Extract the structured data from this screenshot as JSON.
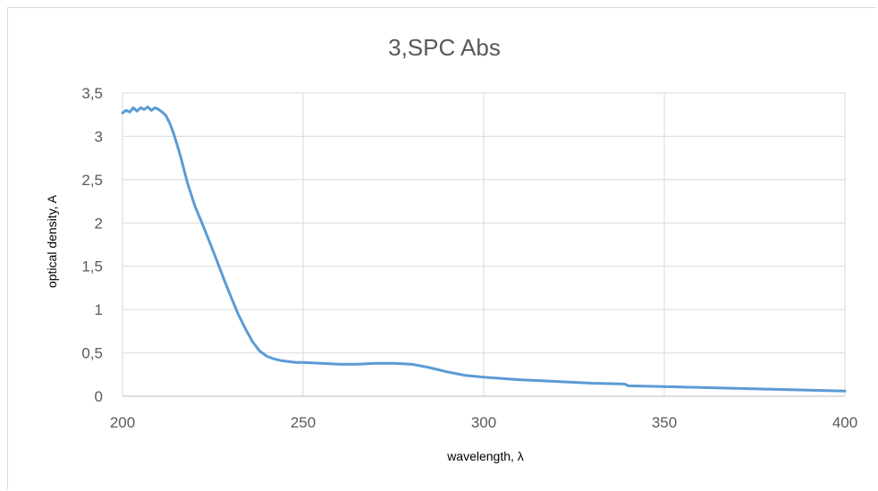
{
  "chart_data": {
    "type": "line",
    "title": "3,SPC Abs",
    "xlabel": "wavelength, λ",
    "ylabel": "optical density, A",
    "xlim": [
      200,
      400
    ],
    "ylim": [
      0,
      3.5
    ],
    "x_ticks": [
      200,
      250,
      300,
      350,
      400
    ],
    "y_ticks": [
      0,
      0.5,
      1,
      1.5,
      2,
      2.5,
      3,
      3.5
    ],
    "x_tick_labels": [
      "200",
      "250",
      "300",
      "350",
      "400"
    ],
    "y_tick_labels": [
      "0",
      "0,5",
      "1",
      "1,5",
      "2",
      "2,5",
      "3",
      "3,5"
    ],
    "grid": true,
    "legend": "none",
    "series": [
      {
        "color": "#5b9bd5",
        "x": [
          200,
          201,
          202,
          203,
          204,
          205,
          206,
          207,
          208,
          209,
          210,
          211,
          212,
          213,
          214,
          215,
          216,
          217,
          218,
          219,
          220,
          222,
          224,
          226,
          228,
          230,
          232,
          234,
          236,
          238,
          240,
          242,
          244,
          246,
          248,
          250,
          255,
          260,
          265,
          270,
          275,
          280,
          285,
          290,
          295,
          300,
          310,
          320,
          330,
          339,
          340,
          350,
          360,
          370,
          380,
          390,
          400
        ],
        "y": [
          3.27,
          3.3,
          3.28,
          3.33,
          3.29,
          3.33,
          3.31,
          3.34,
          3.3,
          3.33,
          3.31,
          3.28,
          3.24,
          3.16,
          3.05,
          2.92,
          2.78,
          2.62,
          2.46,
          2.33,
          2.2,
          2.0,
          1.79,
          1.58,
          1.36,
          1.15,
          0.95,
          0.78,
          0.63,
          0.52,
          0.46,
          0.43,
          0.41,
          0.4,
          0.39,
          0.39,
          0.38,
          0.37,
          0.37,
          0.38,
          0.38,
          0.37,
          0.33,
          0.28,
          0.24,
          0.22,
          0.19,
          0.17,
          0.15,
          0.14,
          0.12,
          0.11,
          0.1,
          0.09,
          0.08,
          0.07,
          0.06
        ]
      }
    ]
  }
}
